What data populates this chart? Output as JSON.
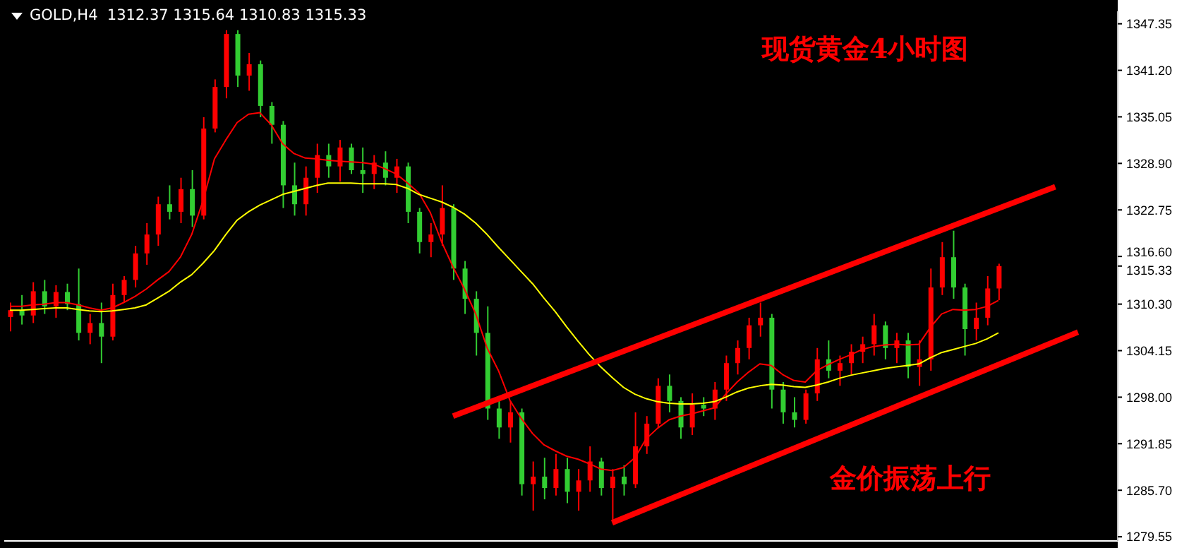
{
  "chart_data": {
    "type": "candlestick",
    "title": "GOLD,H4  1312.37 1315.64 1310.83 1315.33",
    "annotations": [
      "现货黄金4小时图",
      "金价振荡上行"
    ],
    "categories": [
      null,
      null,
      null,
      null,
      null,
      null,
      null,
      null,
      null,
      null,
      null,
      null,
      null,
      null,
      null,
      null,
      null,
      null,
      null,
      null,
      null,
      null,
      null,
      null,
      null,
      null,
      null,
      null,
      null,
      null,
      null,
      null,
      null,
      null,
      null,
      null,
      null,
      null,
      null,
      null,
      null,
      null,
      null,
      null,
      null,
      null,
      null,
      null,
      null,
      null,
      null,
      null,
      null,
      null,
      null,
      null,
      null,
      null,
      null,
      null,
      null,
      null,
      null,
      null,
      null,
      null,
      null,
      null,
      null,
      null,
      null,
      null,
      null,
      null,
      null,
      null,
      null,
      null,
      null,
      null,
      null,
      null,
      null,
      null,
      null,
      null,
      null,
      null,
      null,
      null,
      null,
      null,
      null,
      null,
      null,
      null,
      null,
      null
    ],
    "ohlc": [
      [
        1308.6,
        1310.5,
        1306.7,
        1309.5
      ],
      [
        1309.5,
        1311.5,
        1307.6,
        1308.8
      ],
      [
        1308.8,
        1313.2,
        1307.8,
        1312.0
      ],
      [
        1312.0,
        1313.5,
        1309.0,
        1310.0
      ],
      [
        1310.0,
        1312.8,
        1308.5,
        1311.9
      ],
      [
        1311.9,
        1313.0,
        1309.5,
        1310.3
      ],
      [
        1310.3,
        1315.0,
        1305.5,
        1306.5
      ],
      [
        1306.5,
        1309.0,
        1305.0,
        1307.8
      ],
      [
        1307.8,
        1310.5,
        1302.5,
        1306.0
      ],
      [
        1306.0,
        1313.0,
        1305.5,
        1311.5
      ],
      [
        1311.5,
        1314.0,
        1310.5,
        1313.5
      ],
      [
        1313.5,
        1318.0,
        1312.5,
        1317.0
      ],
      [
        1317.0,
        1321.0,
        1315.5,
        1319.5
      ],
      [
        1319.5,
        1324.5,
        1318.0,
        1323.5
      ],
      [
        1323.5,
        1326.0,
        1321.5,
        1322.5
      ],
      [
        1322.5,
        1327.0,
        1321.0,
        1325.5
      ],
      [
        1325.5,
        1328.0,
        1320.5,
        1322.0
      ],
      [
        1322.0,
        1335.0,
        1321.5,
        1333.5
      ],
      [
        1333.5,
        1340.0,
        1333.0,
        1339.0
      ],
      [
        1339.0,
        1346.5,
        1337.5,
        1346.0
      ],
      [
        1346.0,
        1346.5,
        1339.0,
        1340.5
      ],
      [
        1340.5,
        1343.5,
        1338.5,
        1342.0
      ],
      [
        1342.0,
        1342.5,
        1335.0,
        1336.5
      ],
      [
        1336.5,
        1337.0,
        1331.5,
        1334.0
      ],
      [
        1334.0,
        1334.5,
        1323.0,
        1326.0
      ],
      [
        1326.0,
        1329.0,
        1322.0,
        1323.5
      ],
      [
        1323.5,
        1328.5,
        1322.0,
        1327.0
      ],
      [
        1327.0,
        1331.5,
        1325.0,
        1330.0
      ],
      [
        1330.0,
        1331.5,
        1327.0,
        1328.5
      ],
      [
        1328.5,
        1332.0,
        1326.5,
        1331.0
      ],
      [
        1331.0,
        1331.5,
        1327.5,
        1328.0
      ],
      [
        1328.0,
        1331.0,
        1325.0,
        1327.5
      ],
      [
        1327.5,
        1330.0,
        1325.5,
        1329.0
      ],
      [
        1329.0,
        1330.5,
        1326.0,
        1327.0
      ],
      [
        1327.0,
        1329.5,
        1325.0,
        1328.5
      ],
      [
        1328.5,
        1329.0,
        1321.0,
        1322.5
      ],
      [
        1322.5,
        1323.0,
        1317.0,
        1318.5
      ],
      [
        1318.5,
        1321.0,
        1316.5,
        1319.5
      ],
      [
        1319.5,
        1326.0,
        1318.0,
        1323.0
      ],
      [
        1323.0,
        1323.5,
        1313.5,
        1315.0
      ],
      [
        1315.0,
        1316.0,
        1309.0,
        1311.0
      ],
      [
        1311.0,
        1312.0,
        1303.5,
        1306.5
      ],
      [
        1306.5,
        1310.0,
        1295.0,
        1296.5
      ],
      [
        1296.5,
        1297.5,
        1292.5,
        1294.0
      ],
      [
        1294.0,
        1297.5,
        1292.0,
        1296.0
      ],
      [
        1296.0,
        1296.5,
        1285.0,
        1286.5
      ],
      [
        1286.5,
        1289.5,
        1283.0,
        1287.5
      ],
      [
        1287.5,
        1290.0,
        1284.5,
        1286.0
      ],
      [
        1286.0,
        1290.5,
        1285.0,
        1288.5
      ],
      [
        1288.5,
        1290.0,
        1284.0,
        1285.5
      ],
      [
        1285.5,
        1288.5,
        1283.0,
        1287.0
      ],
      [
        1287.0,
        1291.5,
        1285.5,
        1289.5
      ],
      [
        1289.5,
        1290.0,
        1285.0,
        1286.0
      ],
      [
        1286.0,
        1288.5,
        1281.5,
        1287.5
      ],
      [
        1287.5,
        1289.0,
        1285.0,
        1286.5
      ],
      [
        1286.5,
        1296.0,
        1286.0,
        1291.5
      ],
      [
        1291.5,
        1295.5,
        1290.5,
        1294.5
      ],
      [
        1294.5,
        1300.5,
        1294.0,
        1299.5
      ],
      [
        1299.5,
        1301.0,
        1296.0,
        1297.5
      ],
      [
        1297.5,
        1298.0,
        1292.5,
        1294.0
      ],
      [
        1294.0,
        1298.5,
        1293.0,
        1297.0
      ],
      [
        1297.0,
        1298.0,
        1295.5,
        1296.5
      ],
      [
        1296.5,
        1300.0,
        1295.0,
        1299.0
      ],
      [
        1299.0,
        1303.5,
        1297.5,
        1302.5
      ],
      [
        1302.5,
        1305.5,
        1301.0,
        1304.5
      ],
      [
        1304.5,
        1308.5,
        1303.0,
        1307.5
      ],
      [
        1307.5,
        1310.5,
        1306.0,
        1308.5
      ],
      [
        1308.5,
        1309.0,
        1296.5,
        1299.0
      ],
      [
        1299.0,
        1300.0,
        1294.5,
        1296.0
      ],
      [
        1296.0,
        1298.0,
        1294.0,
        1295.0
      ],
      [
        1295.0,
        1299.0,
        1294.5,
        1298.5
      ],
      [
        1298.5,
        1304.5,
        1297.5,
        1303.0
      ],
      [
        1303.0,
        1305.5,
        1300.5,
        1301.5
      ],
      [
        1301.5,
        1303.5,
        1299.5,
        1302.5
      ],
      [
        1302.5,
        1305.0,
        1301.0,
        1304.0
      ],
      [
        1304.0,
        1306.0,
        1302.5,
        1305.0
      ],
      [
        1305.0,
        1309.0,
        1303.5,
        1307.5
      ],
      [
        1307.5,
        1308.0,
        1303.0,
        1304.5
      ],
      [
        1304.5,
        1306.5,
        1302.5,
        1305.5
      ],
      [
        1305.5,
        1306.5,
        1300.5,
        1302.0
      ],
      [
        1302.0,
        1305.5,
        1299.5,
        1303.0
      ],
      [
        1303.0,
        1315.0,
        1301.5,
        1312.5
      ],
      [
        1312.5,
        1318.5,
        1311.5,
        1316.5
      ],
      [
        1316.5,
        1320.0,
        1311.0,
        1312.5
      ],
      [
        1312.5,
        1313.0,
        1303.5,
        1307.0
      ],
      [
        1307.0,
        1310.5,
        1305.5,
        1308.5
      ],
      [
        1308.5,
        1314.0,
        1307.5,
        1312.37
      ],
      [
        1312.37,
        1315.64,
        1310.83,
        1315.33
      ],
      null,
      null,
      null,
      null,
      null,
      null,
      null,
      null,
      null,
      null
    ],
    "colors": [
      "#ff0000",
      "#32cd32",
      "#ff0000",
      "#32cd32",
      "#ff0000",
      "#32cd32",
      "#32cd32",
      "#ff0000",
      "#32cd32",
      "#ff0000",
      "#ff0000",
      "#ff0000",
      "#ff0000",
      "#ff0000",
      "#32cd32",
      "#ff0000",
      "#32cd32",
      "#ff0000",
      "#ff0000",
      "#ff0000",
      "#32cd32",
      "#ff0000",
      "#32cd32",
      "#32cd32",
      "#32cd32",
      "#32cd32",
      "#ff0000",
      "#ff0000",
      "#32cd32",
      "#ff0000",
      "#32cd32",
      "#32cd32",
      "#ff0000",
      "#32cd32",
      "#ff0000",
      "#32cd32",
      "#32cd32",
      "#ff0000",
      "#ff0000",
      "#32cd32",
      "#32cd32",
      "#32cd32",
      "#32cd32",
      "#32cd32",
      "#ff0000",
      "#32cd32",
      "#ff0000",
      "#32cd32",
      "#ff0000",
      "#32cd32",
      "#ff0000",
      "#ff0000",
      "#32cd32",
      "#ff0000",
      "#32cd32",
      "#ff0000",
      "#ff0000",
      "#ff0000",
      "#32cd32",
      "#32cd32",
      "#ff0000",
      "#32cd32",
      "#ff0000",
      "#ff0000",
      "#ff0000",
      "#ff0000",
      "#ff0000",
      "#32cd32",
      "#32cd32",
      "#32cd32",
      "#ff0000",
      "#ff0000",
      "#32cd32",
      "#ff0000",
      "#ff0000",
      "#ff0000",
      "#ff0000",
      "#32cd32",
      "#ff0000",
      "#32cd32",
      "#ff0000",
      "#ff0000",
      "#ff0000",
      "#32cd32",
      "#32cd32",
      "#ff0000",
      "#ff0000",
      "#ff0000",
      null,
      null,
      null,
      null,
      null,
      null,
      null,
      null,
      null,
      null
    ],
    "series": [
      {
        "type": "line",
        "color": "#ff0000",
        "values": [
          1310.0,
          1310.0,
          1310.2,
          1310.3,
          1310.5,
          1310.5,
          1310.2,
          1309.8,
          1309.5,
          1309.8,
          1310.5,
          1311.3,
          1312.3,
          1313.5,
          1314.6,
          1316.5,
          1319.5,
          1324.0,
          1329.5,
          1332.0,
          1334.3,
          1335.4,
          1335.6,
          1334.0,
          1331.5,
          1330.2,
          1329.6,
          1329.5,
          1329.3,
          1329.2,
          1329.1,
          1329.0,
          1328.8,
          1328.2,
          1327.5,
          1326.3,
          1325.0,
          1322.4,
          1318.5,
          1315.2,
          1312.3,
          1309.0,
          1304.5,
          1301.5,
          1297.6,
          1295.2,
          1293.2,
          1291.7,
          1290.9,
          1290.2,
          1289.8,
          1289.2,
          1288.5,
          1288.3,
          1288.7,
          1290.0,
          1292.5,
          1293.9,
          1295.0,
          1295.5,
          1295.8,
          1296.2,
          1296.6,
          1298.4,
          1300.0,
          1301.3,
          1302.4,
          1302.2,
          1301.0,
          1300.2,
          1300.0,
          1301.5,
          1302.3,
          1303.0,
          1303.6,
          1304.3,
          1304.7,
          1304.9,
          1305.0,
          1304.9,
          1305.0,
          1307.2,
          1309.0,
          1309.6,
          1309.5,
          1309.6,
          1310.0,
          1310.8,
          null,
          null,
          null,
          null,
          null,
          null,
          null,
          null,
          null,
          null
        ]
      },
      {
        "type": "line",
        "color": "#ffff00",
        "values": [
          1309.5,
          1309.5,
          1309.6,
          1309.7,
          1309.8,
          1309.8,
          1309.6,
          1309.4,
          1309.3,
          1309.4,
          1309.6,
          1309.8,
          1310.2,
          1311.1,
          1312.0,
          1313.2,
          1314.2,
          1315.7,
          1317.4,
          1319.5,
          1321.4,
          1322.5,
          1323.4,
          1324.1,
          1324.8,
          1325.2,
          1325.6,
          1326.0,
          1326.3,
          1326.3,
          1326.3,
          1326.2,
          1326.2,
          1326.2,
          1326.1,
          1325.6,
          1324.8,
          1324.3,
          1323.8,
          1323.1,
          1322.2,
          1321.0,
          1319.5,
          1317.8,
          1316.2,
          1314.6,
          1313.0,
          1311.1,
          1309.3,
          1307.3,
          1305.4,
          1303.6,
          1302.0,
          1300.6,
          1299.3,
          1298.4,
          1297.8,
          1297.4,
          1297.2,
          1297.1,
          1297.1,
          1297.2,
          1297.4,
          1298.0,
          1298.7,
          1299.2,
          1299.5,
          1299.7,
          1299.6,
          1299.4,
          1299.3,
          1299.6,
          1300.0,
          1300.5,
          1300.9,
          1301.2,
          1301.5,
          1301.8,
          1302.0,
          1302.2,
          1302.4,
          1303.2,
          1303.9,
          1304.3,
          1304.7,
          1305.1,
          1305.7,
          1306.5,
          null,
          null,
          null,
          null,
          null,
          null,
          null,
          null,
          null,
          null
        ]
      },
      {
        "type": "line",
        "color": "#ff0000",
        "values": [
          null,
          null,
          null,
          null,
          null,
          null,
          null,
          null,
          null,
          null,
          null,
          null,
          null,
          null,
          null,
          null,
          null,
          null,
          null,
          null,
          null,
          null,
          null,
          null,
          null,
          null,
          null,
          null,
          null,
          null,
          null,
          null,
          null,
          null,
          null,
          null,
          null,
          null,
          null,
          1295.5,
          null,
          null,
          null,
          null,
          null,
          null,
          null,
          null,
          null,
          null,
          null,
          null,
          null,
          null,
          null,
          null,
          null,
          null,
          null,
          null,
          null,
          null,
          null,
          null,
          null,
          null,
          null,
          null,
          null,
          null,
          null,
          null,
          null,
          null,
          null,
          null,
          null,
          null,
          null,
          null,
          null,
          null,
          null,
          null,
          null,
          null,
          null,
          null,
          null,
          null,
          null,
          null,
          1325.8,
          null,
          null,
          null,
          null,
          null
        ]
      },
      {
        "type": "line",
        "color": "#ff0000",
        "values": [
          null,
          null,
          null,
          null,
          null,
          null,
          null,
          null,
          null,
          null,
          null,
          null,
          null,
          null,
          null,
          null,
          null,
          null,
          null,
          null,
          null,
          null,
          null,
          null,
          null,
          null,
          null,
          null,
          null,
          null,
          null,
          null,
          null,
          null,
          null,
          null,
          null,
          null,
          null,
          null,
          null,
          null,
          null,
          null,
          null,
          null,
          null,
          null,
          null,
          null,
          null,
          null,
          null,
          1281.4,
          null,
          null,
          null,
          null,
          null,
          null,
          null,
          null,
          null,
          null,
          null,
          null,
          null,
          null,
          null,
          null,
          null,
          null,
          null,
          null,
          null,
          null,
          null,
          null,
          null,
          null,
          null,
          null,
          null,
          null,
          null,
          null,
          null,
          null,
          null,
          null,
          null,
          null,
          null,
          null,
          1306.6,
          null,
          null,
          null
        ]
      }
    ],
    "ylim": [
      1279.0,
      1349.0
    ],
    "yticks": [
      1279.55,
      {
        "value": 1285.7,
        "label": "1285.70"
      },
      1291.85,
      {
        "value": 1298,
        "label": "1298.00"
      },
      1304.15,
      {
        "value": 1310.3,
        "label": "1310.30"
      },
      1315.33,
      {
        "value": 1316.6,
        "label": "1316.60"
      },
      1322.75,
      {
        "value": 1328.9,
        "label": "1328.90"
      },
      1335.05,
      {
        "value": 1341.2,
        "label": "1341.20"
      },
      1347.35
    ],
    "tick_labels": "y"
  }
}
